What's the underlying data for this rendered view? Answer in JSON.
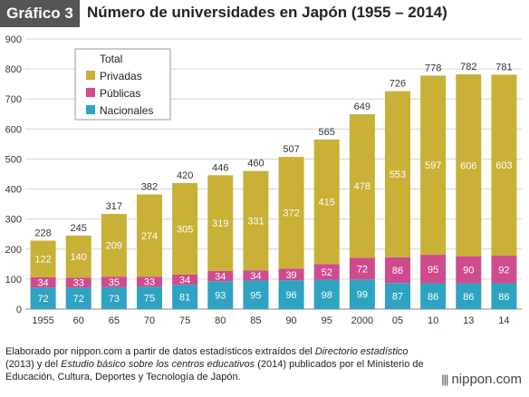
{
  "header": {
    "badge": "Gráfico 3",
    "title": "Número de universidades en Japón (1955 – 2014)"
  },
  "footer": {
    "t1": "Elaborado por nippon.com a partir de datos estadísticos extraídos del ",
    "i1": "Directorio estadístico",
    "t2": " (2013) y del ",
    "i2": "Estudio básico sobre los centros educativos",
    "t3": " (2014) publicados por el Ministerio de Educación, Cultura, Deportes y Tecnología de Japón."
  },
  "brand": {
    "mark": "|||",
    "name": "nippon.com"
  },
  "colors": {
    "privadas": "#c8b136",
    "publicas": "#cf4b8d",
    "nacionales": "#2ea3c2"
  },
  "chart_data": {
    "type": "bar",
    "stacked": true,
    "categories": [
      "1955",
      "60",
      "65",
      "70",
      "75",
      "80",
      "85",
      "90",
      "95",
      "2000",
      "05",
      "10",
      "13",
      "14"
    ],
    "series": [
      {
        "name": "Nacionales",
        "values": [
          72,
          72,
          73,
          75,
          81,
          93,
          95,
          96,
          98,
          99,
          87,
          86,
          86,
          86
        ]
      },
      {
        "name": "Públicas",
        "values": [
          34,
          33,
          35,
          33,
          34,
          34,
          34,
          39,
          52,
          72,
          86,
          95,
          90,
          92
        ]
      },
      {
        "name": "Privadas",
        "values": [
          122,
          140,
          209,
          274,
          305,
          319,
          331,
          372,
          415,
          478,
          553,
          597,
          606,
          603
        ]
      }
    ],
    "totals": [
      228,
      245,
      317,
      382,
      420,
      446,
      460,
      507,
      565,
      649,
      726,
      778,
      782,
      781
    ],
    "legend_title": "Total",
    "legend_position": "top-left",
    "ylim": [
      0,
      900
    ],
    "yticks": [
      0,
      100,
      200,
      300,
      400,
      500,
      600,
      700,
      800,
      900
    ],
    "grid": true
  }
}
